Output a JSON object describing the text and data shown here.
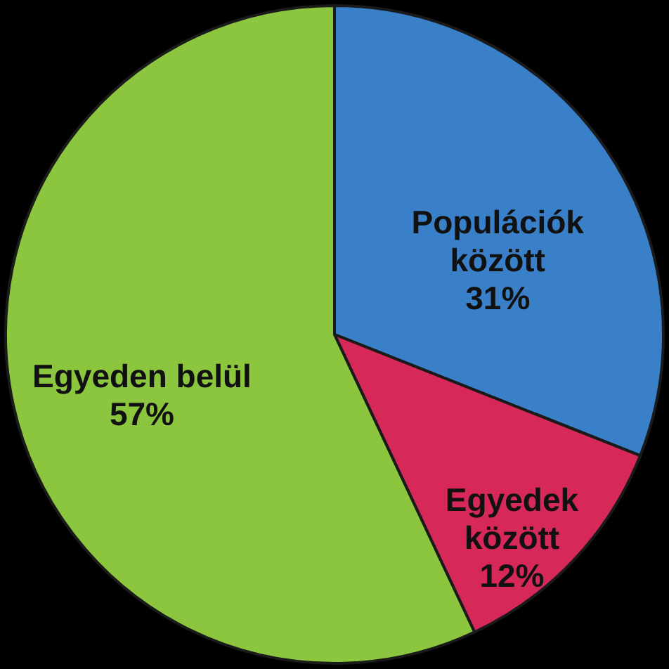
{
  "chart_data": {
    "type": "pie",
    "categories": [
      "Populációk\nközött",
      "Egyedek\nközött",
      "Egyeden belül"
    ],
    "values": [
      31,
      12,
      57
    ],
    "value_labels": [
      "31%",
      "12%",
      "57%"
    ],
    "colors": [
      "#3a80c8",
      "#d7285a",
      "#8cc63e"
    ],
    "legend": false
  }
}
